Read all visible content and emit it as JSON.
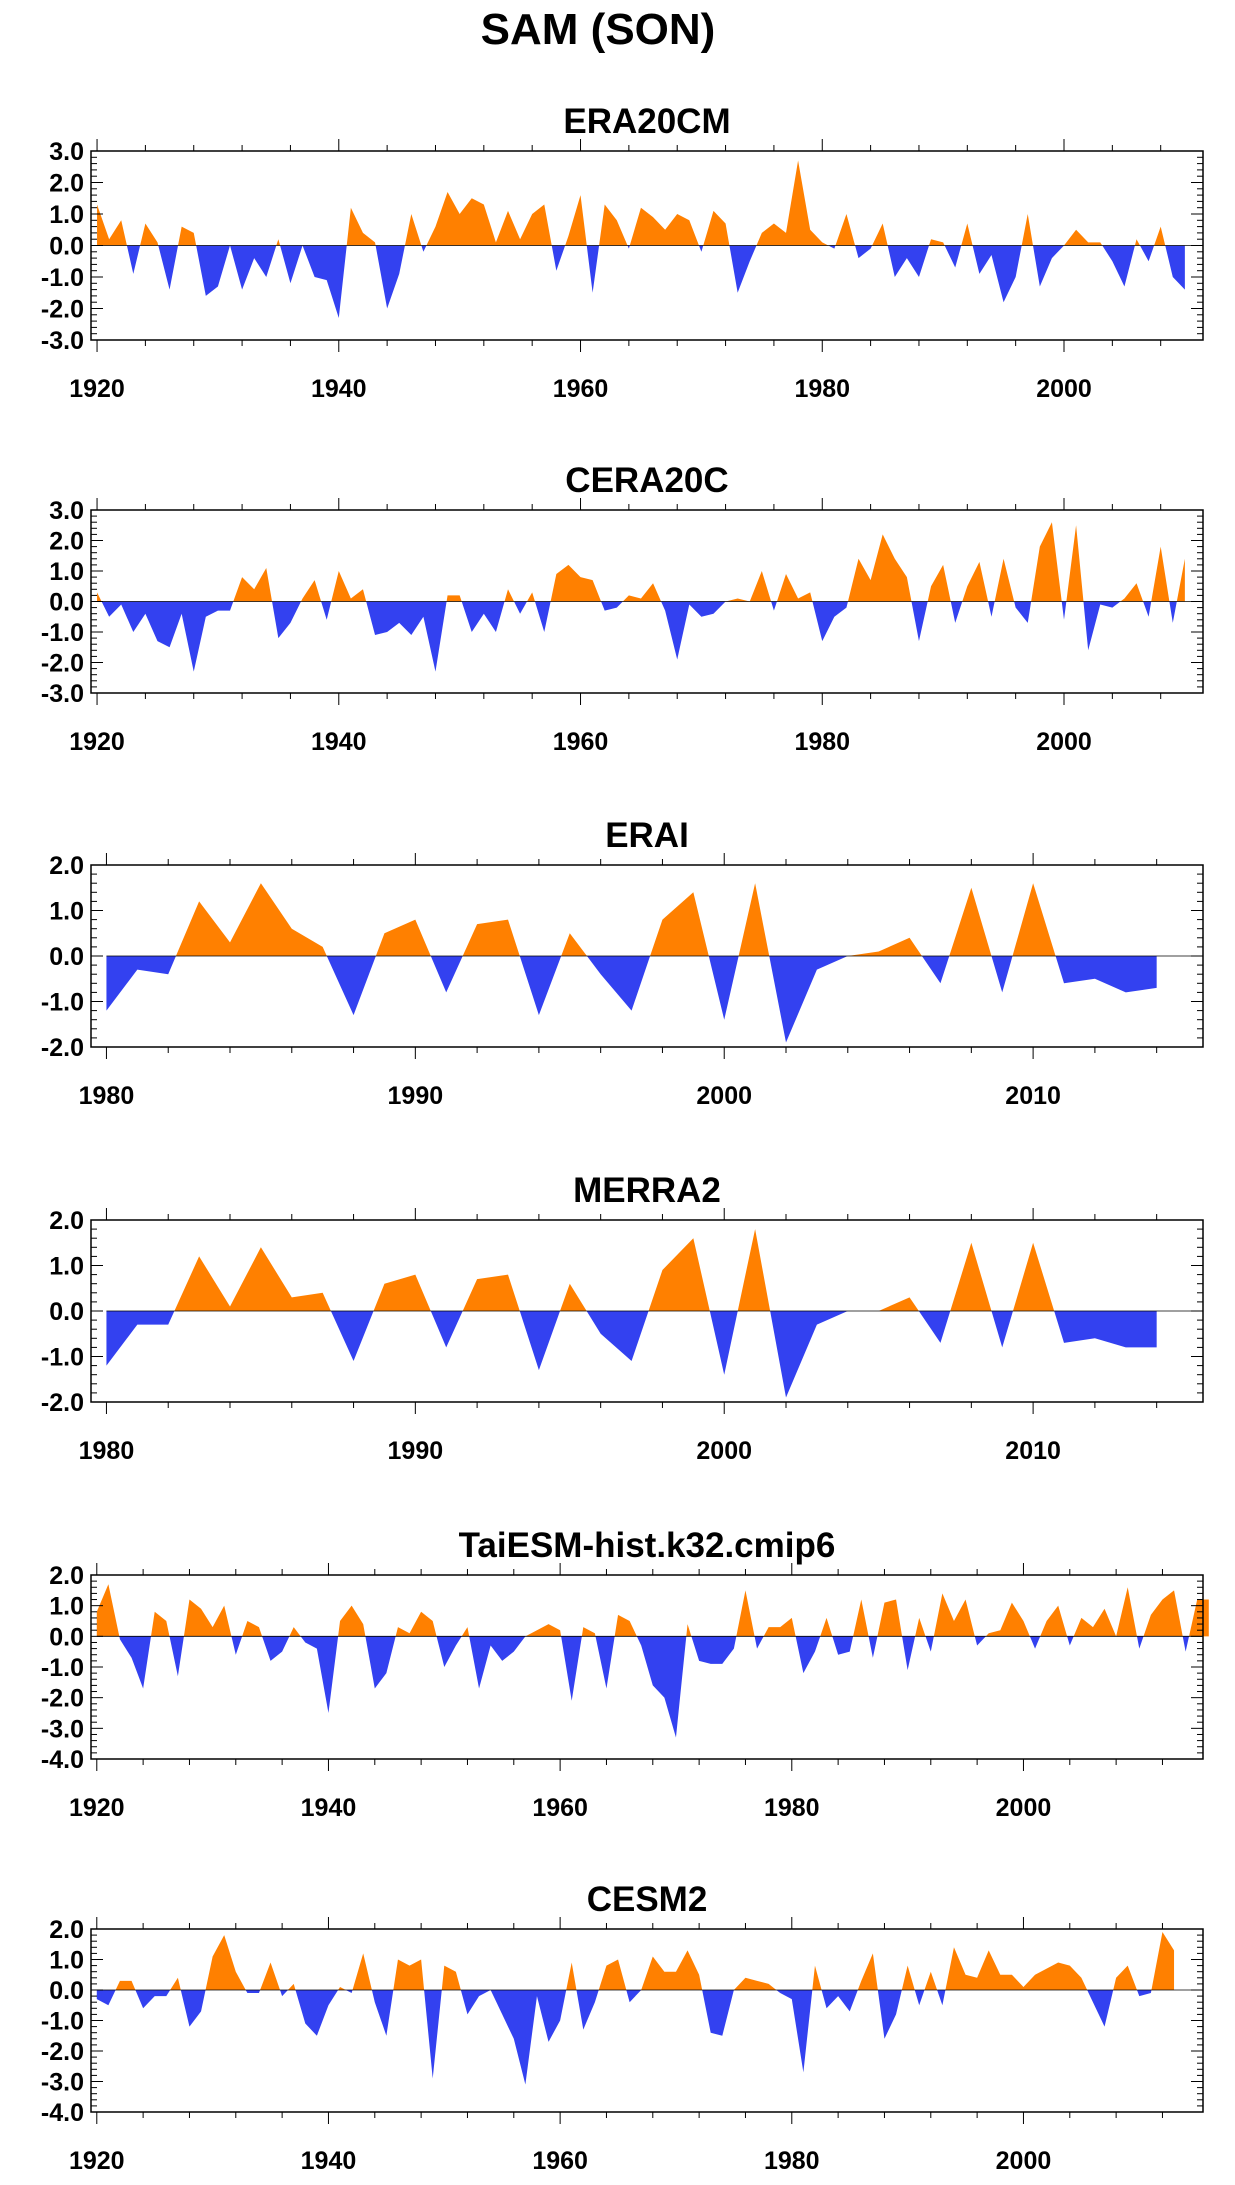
{
  "figure": {
    "title": "SAM (SON)",
    "colors": {
      "positive": "#FF8000",
      "negative": "#3341F0",
      "axis": "#000000",
      "zero_line": "#000000"
    }
  },
  "chart_data": [
    {
      "type": "area",
      "title": "ERA20CM",
      "xlim": [
        1919.5,
        2011.5
      ],
      "ylim": [
        -3.0,
        3.0
      ],
      "xticks": [
        1920,
        1940,
        1960,
        1980,
        2000
      ],
      "yticks": [
        -3.0,
        -2.0,
        -1.0,
        0.0,
        1.0,
        2.0,
        3.0
      ],
      "x_start": 1920,
      "y": [
        1.3,
        0.2,
        0.8,
        -0.9,
        0.7,
        0.1,
        -1.4,
        0.6,
        0.4,
        -1.6,
        -1.3,
        0.0,
        -1.4,
        -0.4,
        -1.0,
        0.2,
        -1.2,
        0.0,
        -1.0,
        -1.1,
        -2.3,
        1.2,
        0.4,
        0.1,
        -2.0,
        -0.9,
        1.0,
        -0.2,
        0.6,
        1.7,
        1.0,
        1.5,
        1.3,
        0.1,
        1.1,
        0.2,
        1.0,
        1.3,
        -0.8,
        0.3,
        1.6,
        -1.5,
        1.3,
        0.8,
        -0.1,
        1.2,
        0.9,
        0.5,
        1.0,
        0.8,
        -0.2,
        1.1,
        0.7,
        -1.5,
        -0.5,
        0.4,
        0.7,
        0.4,
        2.7,
        0.5,
        0.1,
        -0.1,
        1.0,
        -0.4,
        -0.1,
        0.7,
        -1.0,
        -0.4,
        -1.0,
        0.2,
        0.1,
        -0.7,
        0.7,
        -0.9,
        -0.3,
        -1.8,
        -1.0,
        1.0,
        -1.3,
        -0.4,
        0.0,
        0.5,
        0.1,
        0.1,
        -0.5,
        -1.3,
        0.2,
        -0.5,
        0.6,
        -1.0,
        -1.4
      ]
    },
    {
      "type": "area",
      "title": "CERA20C",
      "xlim": [
        1919.5,
        2011.5
      ],
      "ylim": [
        -3.0,
        3.0
      ],
      "xticks": [
        1920,
        1940,
        1960,
        1980,
        2000
      ],
      "yticks": [
        -3.0,
        -2.0,
        -1.0,
        0.0,
        1.0,
        2.0,
        3.0
      ],
      "x_start": 1920,
      "y": [
        0.3,
        -0.5,
        -0.1,
        -1.0,
        -0.4,
        -1.3,
        -1.5,
        -0.4,
        -2.3,
        -0.5,
        -0.3,
        -0.3,
        0.8,
        0.4,
        1.1,
        -1.2,
        -0.7,
        0.1,
        0.7,
        -0.6,
        1.0,
        0.1,
        0.4,
        -1.1,
        -1.0,
        -0.7,
        -1.1,
        -0.5,
        -2.3,
        0.2,
        0.2,
        -1.0,
        -0.4,
        -1.0,
        0.4,
        -0.4,
        0.3,
        -1.0,
        0.9,
        1.2,
        0.8,
        0.7,
        -0.3,
        -0.2,
        0.2,
        0.1,
        0.6,
        -0.3,
        -1.9,
        -0.1,
        -0.5,
        -0.4,
        0.0,
        0.1,
        0.0,
        1.0,
        -0.3,
        0.9,
        0.1,
        0.3,
        -1.3,
        -0.5,
        -0.2,
        1.4,
        0.7,
        2.2,
        1.4,
        0.8,
        -1.3,
        0.5,
        1.2,
        -0.7,
        0.5,
        1.3,
        -0.5,
        1.4,
        -0.2,
        -0.7,
        1.8,
        2.6,
        -0.6,
        2.5,
        -1.6,
        -0.1,
        -0.2,
        0.1,
        0.6,
        -0.5,
        1.8,
        -0.7,
        1.4
      ]
    },
    {
      "type": "area",
      "title": "ERAI",
      "xlim": [
        1979.5,
        2015.5
      ],
      "ylim": [
        -2.0,
        2.0
      ],
      "xticks": [
        1980,
        1990,
        2000,
        2010
      ],
      "yticks": [
        -2.0,
        -1.0,
        0.0,
        1.0,
        2.0
      ],
      "x_start": 1980,
      "y": [
        -1.2,
        -0.3,
        -0.4,
        1.2,
        0.3,
        1.6,
        0.6,
        0.2,
        -1.3,
        0.5,
        0.8,
        -0.8,
        0.7,
        0.8,
        -1.3,
        0.5,
        -0.4,
        -1.2,
        0.8,
        1.4,
        -1.4,
        1.6,
        -1.9,
        -0.3,
        0.0,
        0.1,
        0.4,
        -0.6,
        1.5,
        -0.8,
        1.6,
        -0.6,
        -0.5,
        -0.8,
        -0.7
      ]
    },
    {
      "type": "area",
      "title": "MERRA2",
      "xlim": [
        1979.5,
        2015.5
      ],
      "ylim": [
        -2.0,
        2.0
      ],
      "xticks": [
        1980,
        1990,
        2000,
        2010
      ],
      "yticks": [
        -2.0,
        -1.0,
        0.0,
        1.0,
        2.0
      ],
      "x_start": 1980,
      "y": [
        -1.2,
        -0.3,
        -0.3,
        1.2,
        0.1,
        1.4,
        0.3,
        0.4,
        -1.1,
        0.6,
        0.8,
        -0.8,
        0.7,
        0.8,
        -1.3,
        0.6,
        -0.5,
        -1.1,
        0.9,
        1.6,
        -1.4,
        1.8,
        -1.9,
        -0.3,
        0.0,
        0.0,
        0.3,
        -0.7,
        1.5,
        -0.8,
        1.5,
        -0.7,
        -0.6,
        -0.8,
        -0.8
      ]
    },
    {
      "type": "area",
      "title": "TaiESM-hist.k32.cmip6",
      "xlim": [
        1919.5,
        2015.5
      ],
      "ylim": [
        -4.0,
        2.0
      ],
      "xticks": [
        1920,
        1940,
        1960,
        1980,
        2000
      ],
      "yticks": [
        -4.0,
        -3.0,
        -2.0,
        -1.0,
        0.0,
        1.0,
        2.0
      ],
      "x_start": 1920,
      "y": [
        0.8,
        1.7,
        -0.1,
        -0.7,
        -1.7,
        0.8,
        0.5,
        -1.3,
        1.2,
        0.9,
        0.3,
        1.0,
        -0.6,
        0.5,
        0.3,
        -0.8,
        -0.5,
        0.3,
        -0.2,
        -0.4,
        -2.5,
        0.5,
        1.0,
        0.4,
        -1.7,
        -1.2,
        0.3,
        0.1,
        0.8,
        0.5,
        -1.0,
        -0.3,
        0.3,
        -1.7,
        -0.3,
        -0.8,
        -0.5,
        0.0,
        0.2,
        0.4,
        0.2,
        -2.1,
        0.3,
        0.1,
        -1.7,
        0.7,
        0.5,
        -0.3,
        -1.6,
        -2.0,
        -3.3,
        0.4,
        -0.8,
        -0.9,
        -0.9,
        -0.4,
        1.5,
        -0.4,
        0.3,
        0.3,
        0.6,
        -1.2,
        -0.5,
        0.6,
        -0.6,
        -0.5,
        1.2,
        -0.7,
        1.1,
        1.2,
        -1.1,
        0.6,
        -0.5,
        1.4,
        0.5,
        1.2,
        -0.3,
        0.1,
        0.2,
        1.1,
        0.5,
        -0.4,
        0.5,
        1.0,
        -0.3,
        0.6,
        0.3,
        0.9,
        0.0,
        1.6,
        -0.4,
        0.7,
        1.2,
        1.5,
        -0.5,
        1.2,
        1.2
      ]
    },
    {
      "type": "area",
      "title": "CESM2",
      "xlim": [
        1919.5,
        2015.5
      ],
      "ylim": [
        -4.0,
        2.0
      ],
      "xticks": [
        1920,
        1940,
        1960,
        1980,
        2000
      ],
      "yticks": [
        -4.0,
        -3.0,
        -2.0,
        -1.0,
        0.0,
        1.0,
        2.0
      ],
      "x_start": 1920,
      "y": [
        -0.3,
        -0.5,
        0.3,
        0.3,
        -0.6,
        -0.2,
        -0.2,
        0.4,
        -1.2,
        -0.7,
        1.1,
        1.8,
        0.6,
        -0.1,
        -0.1,
        0.9,
        -0.2,
        0.2,
        -1.1,
        -1.5,
        -0.5,
        0.1,
        -0.1,
        1.2,
        -0.4,
        -1.5,
        1.0,
        0.8,
        1.0,
        -2.9,
        0.8,
        0.6,
        -0.8,
        -0.2,
        0.0,
        -0.8,
        -1.6,
        -3.1,
        -0.2,
        -1.7,
        -1.0,
        0.9,
        -1.3,
        -0.4,
        0.8,
        1.0,
        -0.4,
        0.0,
        1.1,
        0.6,
        0.6,
        1.3,
        0.5,
        -1.4,
        -1.5,
        0.0,
        0.4,
        0.3,
        0.2,
        -0.1,
        -0.3,
        -2.7,
        0.8,
        -0.6,
        -0.2,
        -0.7,
        0.3,
        1.2,
        -1.6,
        -0.8,
        0.8,
        -0.5,
        0.6,
        -0.5,
        1.4,
        0.5,
        0.4,
        1.3,
        0.5,
        0.5,
        0.1,
        0.5,
        0.7,
        0.9,
        0.8,
        0.4,
        -0.4,
        -1.2,
        0.4,
        0.8,
        -0.2,
        -0.1,
        1.9,
        1.3
      ]
    }
  ]
}
